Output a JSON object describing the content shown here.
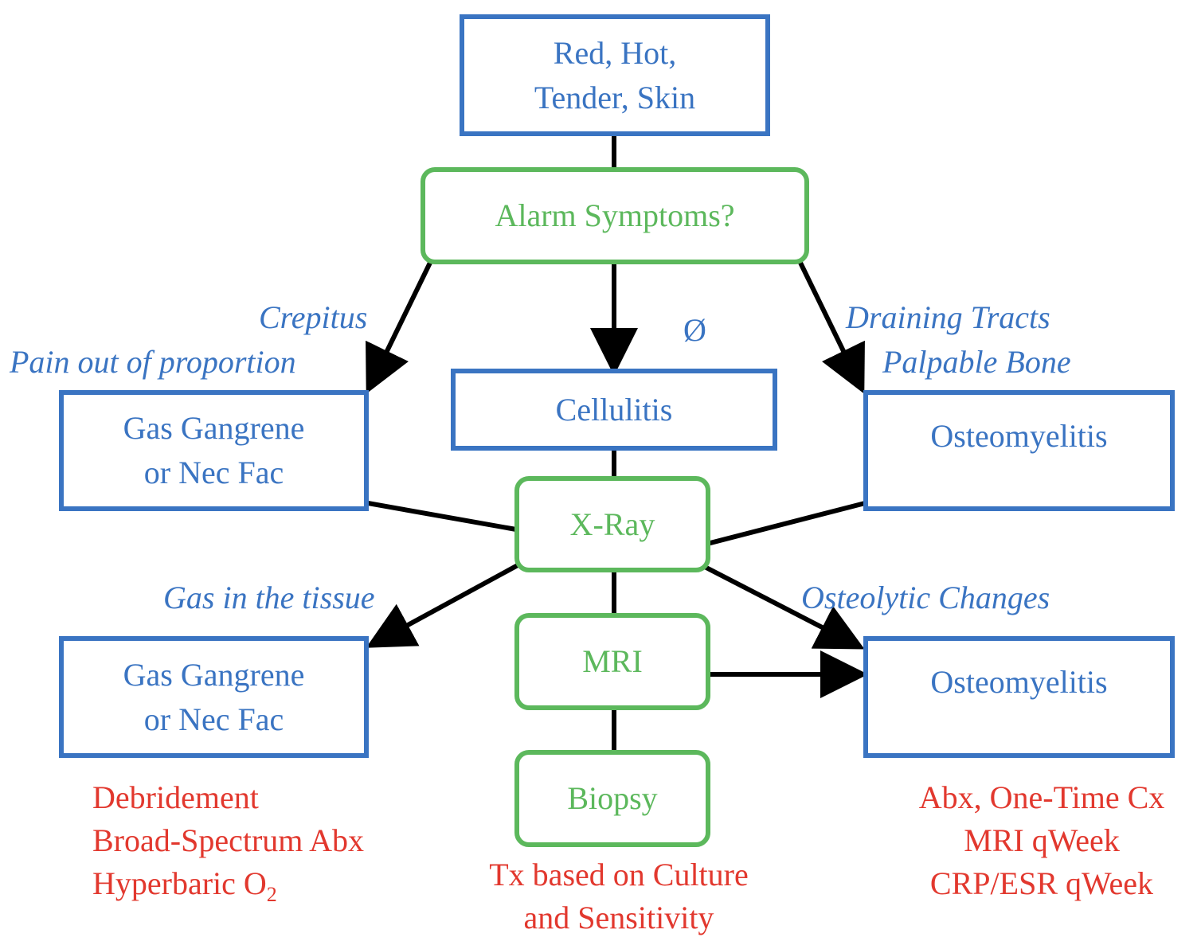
{
  "nodes": {
    "presentation": {
      "line1": "Red, Hot,",
      "line2": "Tender, Skin"
    },
    "alarm": "Alarm Symptoms?",
    "cellulitis": "Cellulitis",
    "gas_top": {
      "line1": "Gas Gangrene",
      "line2": "or Nec Fac"
    },
    "osteo_top": "Osteomyelitis",
    "xray": "X-Ray",
    "mri": "MRI",
    "biopsy": "Biopsy",
    "gas_bottom": {
      "line1": "Gas Gangrene",
      "line2": "or Nec Fac"
    },
    "osteo_bottom": "Osteomyelitis"
  },
  "edge_labels": {
    "crepitus": "Crepitus",
    "pain": "Pain out of proportion",
    "none": "Ø",
    "draining": "Draining Tracts",
    "palpable": "Palpable Bone",
    "gas_tissue": "Gas in the tissue",
    "osteolytic": "Osteolytic Changes"
  },
  "treatments": {
    "left": {
      "line1": "Debridement",
      "line2": "Broad-Spectrum Abx",
      "line3_main": "Hyperbaric O",
      "line3_sub": "2"
    },
    "center": {
      "line1": "Tx based on Culture",
      "line2": "and Sensitivity"
    },
    "right": {
      "line1": "Abx, One-Time Cx",
      "line2": "MRI qWeek",
      "line3": "CRP/ESR qWeek"
    }
  },
  "colors": {
    "box_border": "#3a74c2",
    "decision_border": "#5cb85c",
    "treatment_text": "#e2382e",
    "connector": "#000000"
  }
}
